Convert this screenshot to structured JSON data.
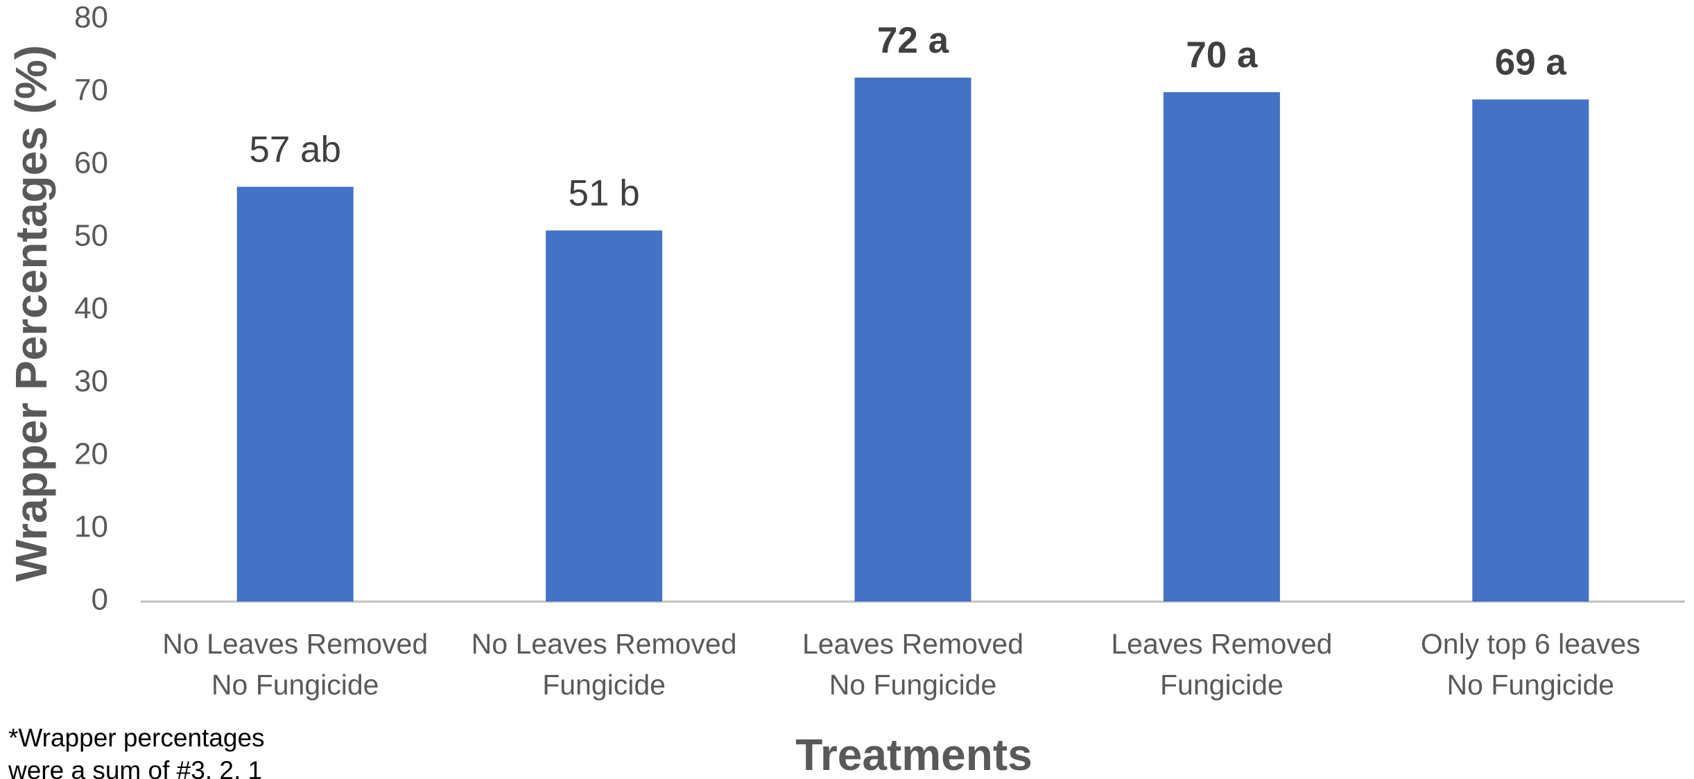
{
  "chart_data": {
    "type": "bar",
    "ylabel": "Wrapper Percentages (%)",
    "xlabel": "Treatments",
    "categories": [
      [
        "No Leaves Removed",
        "No Fungicide"
      ],
      [
        "No Leaves Removed",
        "Fungicide"
      ],
      [
        "Leaves Removed",
        "No Fungicide"
      ],
      [
        "Leaves Removed",
        "Fungicide"
      ],
      [
        "Only top 6 leaves",
        "No Fungicide"
      ]
    ],
    "values": [
      57,
      51,
      72,
      70,
      69
    ],
    "value_labels": [
      "57 ab",
      "51 b",
      "72 a",
      "70 a",
      "69 a"
    ],
    "color": "#4472c4",
    "ylim": [
      0,
      80
    ],
    "yticks": [
      0,
      10,
      20,
      30,
      40,
      50,
      60,
      70,
      80
    ],
    "grid": false,
    "annotations": [
      "*Wrapper percentages",
      "were a sum of #3, 2, 1"
    ]
  }
}
